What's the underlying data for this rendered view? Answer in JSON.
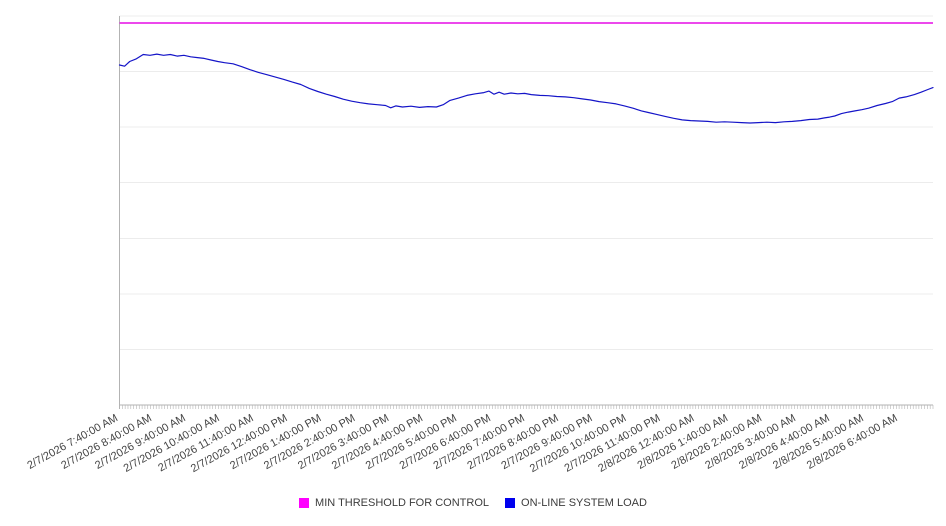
{
  "chart_data": {
    "type": "line",
    "title": "",
    "xlabel": "",
    "ylabel": "",
    "x_axis": {
      "span_hours": 24,
      "minor_ticks_per_hour": 12,
      "labels": [
        "2/7/2026 7:40:00 AM",
        "2/7/2026 8:40:00 AM",
        "2/7/2026 9:40:00 AM",
        "2/7/2026 10:40:00 AM",
        "2/7/2026 11:40:00 AM",
        "2/7/2026 12:40:00 PM",
        "2/7/2026 1:40:00 PM",
        "2/7/2026 2:40:00 PM",
        "2/7/2026 3:40:00 PM",
        "2/7/2026 4:40:00 PM",
        "2/7/2026 5:40:00 PM",
        "2/7/2026 6:40:00 PM",
        "2/7/2026 7:40:00 PM",
        "2/7/2026 8:40:00 PM",
        "2/7/2026 9:40:00 PM",
        "2/7/2026 10:40:00 PM",
        "2/7/2026 11:40:00 PM",
        "2/8/2026 12:40:00 AM",
        "2/8/2026 1:40:00 AM",
        "2/8/2026 2:40:00 AM",
        "2/8/2026 3:40:00 AM",
        "2/8/2026 4:40:00 AM",
        "2/8/2026 5:40:00 AM",
        "2/8/2026 6:40:00 AM"
      ]
    },
    "y_axis": {
      "labels_visible": false,
      "gridline_rows": 7,
      "range": [
        0,
        100
      ],
      "note": "y values normalized 0-100 of plot height; no numeric labels shown in source"
    },
    "series": [
      {
        "name": "MIN THRESHOLD FOR CONTROL",
        "type": "threshold-line",
        "color": "#e50ce5",
        "value": 98.2
      },
      {
        "name": "ON-LINE SYSTEM LOAD",
        "type": "line",
        "color": "#1414c8",
        "points": [
          [
            0.0,
            87.4
          ],
          [
            0.15,
            87.1
          ],
          [
            0.3,
            88.3
          ],
          [
            0.5,
            89.0
          ],
          [
            0.7,
            90.1
          ],
          [
            0.9,
            89.9
          ],
          [
            1.1,
            90.2
          ],
          [
            1.3,
            89.9
          ],
          [
            1.5,
            90.1
          ],
          [
            1.7,
            89.7
          ],
          [
            1.9,
            89.9
          ],
          [
            2.1,
            89.5
          ],
          [
            2.3,
            89.3
          ],
          [
            2.5,
            89.1
          ],
          [
            2.7,
            88.7
          ],
          [
            2.9,
            88.3
          ],
          [
            3.1,
            88.0
          ],
          [
            3.35,
            87.7
          ],
          [
            3.6,
            87.0
          ],
          [
            3.85,
            86.2
          ],
          [
            4.1,
            85.5
          ],
          [
            4.35,
            84.9
          ],
          [
            4.6,
            84.3
          ],
          [
            4.85,
            83.7
          ],
          [
            5.1,
            83.0
          ],
          [
            5.35,
            82.4
          ],
          [
            5.6,
            81.4
          ],
          [
            5.85,
            80.6
          ],
          [
            6.1,
            79.9
          ],
          [
            6.35,
            79.3
          ],
          [
            6.6,
            78.6
          ],
          [
            6.85,
            78.1
          ],
          [
            7.1,
            77.7
          ],
          [
            7.35,
            77.4
          ],
          [
            7.6,
            77.2
          ],
          [
            7.85,
            77.0
          ],
          [
            8.0,
            76.4
          ],
          [
            8.15,
            76.9
          ],
          [
            8.35,
            76.6
          ],
          [
            8.6,
            76.8
          ],
          [
            8.85,
            76.5
          ],
          [
            9.1,
            76.7
          ],
          [
            9.35,
            76.6
          ],
          [
            9.55,
            77.2
          ],
          [
            9.75,
            78.3
          ],
          [
            10.0,
            78.9
          ],
          [
            10.25,
            79.6
          ],
          [
            10.5,
            80.0
          ],
          [
            10.75,
            80.3
          ],
          [
            10.9,
            80.7
          ],
          [
            11.05,
            79.9
          ],
          [
            11.2,
            80.4
          ],
          [
            11.35,
            79.9
          ],
          [
            11.55,
            80.2
          ],
          [
            11.75,
            80.0
          ],
          [
            11.95,
            80.1
          ],
          [
            12.15,
            79.8
          ],
          [
            12.4,
            79.6
          ],
          [
            12.65,
            79.5
          ],
          [
            12.9,
            79.3
          ],
          [
            13.15,
            79.2
          ],
          [
            13.4,
            79.0
          ],
          [
            13.65,
            78.7
          ],
          [
            13.9,
            78.4
          ],
          [
            14.15,
            78.0
          ],
          [
            14.4,
            77.7
          ],
          [
            14.65,
            77.4
          ],
          [
            14.9,
            76.9
          ],
          [
            15.15,
            76.3
          ],
          [
            15.4,
            75.6
          ],
          [
            15.6,
            75.2
          ],
          [
            15.85,
            74.7
          ],
          [
            16.1,
            74.2
          ],
          [
            16.35,
            73.7
          ],
          [
            16.6,
            73.3
          ],
          [
            16.85,
            73.1
          ],
          [
            17.1,
            73.0
          ],
          [
            17.35,
            72.9
          ],
          [
            17.6,
            72.7
          ],
          [
            17.85,
            72.8
          ],
          [
            18.1,
            72.7
          ],
          [
            18.35,
            72.6
          ],
          [
            18.6,
            72.5
          ],
          [
            18.85,
            72.6
          ],
          [
            19.1,
            72.7
          ],
          [
            19.35,
            72.6
          ],
          [
            19.6,
            72.8
          ],
          [
            19.85,
            72.9
          ],
          [
            20.1,
            73.1
          ],
          [
            20.35,
            73.4
          ],
          [
            20.6,
            73.5
          ],
          [
            20.8,
            73.8
          ],
          [
            20.95,
            74.0
          ],
          [
            21.1,
            74.3
          ],
          [
            21.3,
            74.9
          ],
          [
            21.5,
            75.3
          ],
          [
            21.7,
            75.6
          ],
          [
            21.9,
            75.9
          ],
          [
            22.1,
            76.3
          ],
          [
            22.35,
            77.0
          ],
          [
            22.6,
            77.5
          ],
          [
            22.8,
            78.0
          ],
          [
            23.0,
            78.9
          ],
          [
            23.2,
            79.2
          ],
          [
            23.45,
            79.8
          ],
          [
            23.65,
            80.4
          ],
          [
            23.85,
            81.1
          ],
          [
            24.0,
            81.6
          ]
        ]
      }
    ],
    "legend": {
      "position": "bottom-center",
      "items": [
        {
          "label": "MIN THRESHOLD FOR CONTROL",
          "color": "#ff00ff"
        },
        {
          "label": "ON-LINE SYSTEM LOAD",
          "color": "#0000ee"
        }
      ]
    },
    "colors": {
      "background": "#ffffff",
      "gridline": "#ececec",
      "axis": "#b3b3b3",
      "tick_label": "#444444",
      "legend_text": "#3c3c3c"
    },
    "grid": "horizontal-only"
  }
}
